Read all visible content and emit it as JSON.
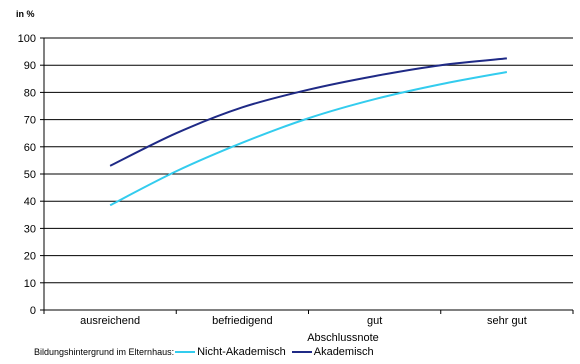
{
  "chart_data": {
    "type": "line",
    "unit_label": "in %",
    "xlabel": "Abschlussnote",
    "ylabel": "",
    "categories": [
      "ausreichend",
      "befriedigend",
      "gut",
      "sehr gut"
    ],
    "ylim": [
      0,
      100
    ],
    "yticks": [
      0,
      10,
      20,
      30,
      40,
      50,
      60,
      70,
      80,
      90,
      100
    ],
    "grid": true,
    "legend_title": "Bildungshintergrund im Elternhaus:",
    "legend_placement": "bottom",
    "series": [
      {
        "name": "Nicht-Akademisch",
        "color": "#33ccee",
        "x": [
          0,
          0.5,
          1,
          1.5,
          2,
          2.5,
          3
        ],
        "values": [
          38.5,
          51,
          61.5,
          70.5,
          77.5,
          83,
          87.5
        ]
      },
      {
        "name": "Akademisch",
        "color": "#1f2a86",
        "x": [
          0,
          0.5,
          1,
          1.5,
          2,
          2.5,
          3
        ],
        "values": [
          53,
          65,
          74.5,
          81,
          86,
          90,
          92.5
        ]
      }
    ]
  }
}
